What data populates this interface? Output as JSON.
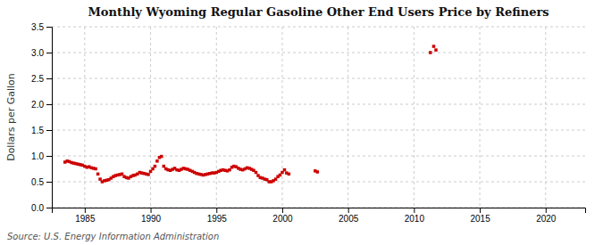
{
  "chart_data": {
    "type": "scatter",
    "title": "Monthly Wyoming Regular Gasoline Other End Users Price by Refiners",
    "ylabel": "Dollars per Gallon",
    "annotations": [
      "Source: U.S. Energy Information Administration"
    ],
    "color": "#cc0000",
    "marker": "square",
    "grid": true,
    "xlim": [
      1982.5,
      2023
    ],
    "ylim": [
      0.0,
      3.5
    ],
    "xticks": [
      1985,
      1990,
      1995,
      2000,
      2005,
      2010,
      2015,
      2020
    ],
    "yticks": [
      {
        "value": 0.0,
        "label": "0.0"
      },
      0.5,
      {
        "value": 1.0,
        "label": "1.0"
      },
      1.5,
      {
        "value": 2.0,
        "label": "2.0"
      },
      2.5,
      {
        "value": 3.0,
        "label": "3.0"
      },
      3.5
    ],
    "x": [
      1983.5,
      1983.67,
      1983.83,
      1984.0,
      1984.17,
      1984.33,
      1984.5,
      1984.67,
      1984.83,
      1985.0,
      1985.17,
      1985.33,
      1985.5,
      1985.67,
      1985.83,
      1986.0,
      1986.17,
      1986.33,
      1986.5,
      1986.67,
      1986.83,
      1987.0,
      1987.17,
      1987.33,
      1987.5,
      1987.67,
      1987.83,
      1988.0,
      1988.17,
      1988.33,
      1988.5,
      1988.67,
      1988.83,
      1989.0,
      1989.17,
      1989.33,
      1989.5,
      1989.67,
      1989.83,
      1990.0,
      1990.17,
      1990.33,
      1990.5,
      1990.67,
      1990.83,
      1991.0,
      1991.17,
      1991.33,
      1991.5,
      1991.67,
      1991.83,
      1992.0,
      1992.17,
      1992.33,
      1992.5,
      1992.67,
      1992.83,
      1993.0,
      1993.17,
      1993.33,
      1993.5,
      1993.67,
      1993.83,
      1994.0,
      1994.17,
      1994.33,
      1994.5,
      1994.67,
      1994.83,
      1995.0,
      1995.17,
      1995.33,
      1995.5,
      1995.67,
      1995.83,
      1996.0,
      1996.17,
      1996.33,
      1996.5,
      1996.67,
      1996.83,
      1997.0,
      1997.17,
      1997.33,
      1997.5,
      1997.67,
      1997.83,
      1998.0,
      1998.17,
      1998.33,
      1998.5,
      1998.67,
      1998.83,
      1999.0,
      1999.17,
      1999.33,
      1999.5,
      1999.67,
      1999.83,
      2000.0,
      2000.17,
      2000.33,
      2000.5,
      2002.5,
      2002.67,
      2011.25,
      2011.5,
      2011.67
    ],
    "values": [
      0.88,
      0.9,
      0.89,
      0.87,
      0.86,
      0.85,
      0.84,
      0.83,
      0.82,
      0.8,
      0.78,
      0.79,
      0.77,
      0.76,
      0.75,
      0.65,
      0.55,
      0.5,
      0.52,
      0.53,
      0.54,
      0.57,
      0.6,
      0.62,
      0.63,
      0.64,
      0.65,
      0.6,
      0.58,
      0.57,
      0.6,
      0.62,
      0.63,
      0.65,
      0.68,
      0.67,
      0.66,
      0.65,
      0.64,
      0.7,
      0.75,
      0.8,
      0.9,
      0.97,
      0.99,
      0.8,
      0.75,
      0.73,
      0.72,
      0.74,
      0.76,
      0.73,
      0.72,
      0.74,
      0.76,
      0.75,
      0.74,
      0.72,
      0.7,
      0.68,
      0.66,
      0.65,
      0.64,
      0.63,
      0.64,
      0.65,
      0.66,
      0.67,
      0.67,
      0.68,
      0.7,
      0.72,
      0.73,
      0.72,
      0.71,
      0.73,
      0.78,
      0.8,
      0.79,
      0.76,
      0.74,
      0.73,
      0.75,
      0.77,
      0.76,
      0.74,
      0.72,
      0.68,
      0.62,
      0.58,
      0.57,
      0.55,
      0.54,
      0.5,
      0.5,
      0.52,
      0.55,
      0.6,
      0.63,
      0.68,
      0.73,
      0.67,
      0.65,
      0.71,
      0.69,
      3.0,
      3.12,
      3.05
    ]
  }
}
